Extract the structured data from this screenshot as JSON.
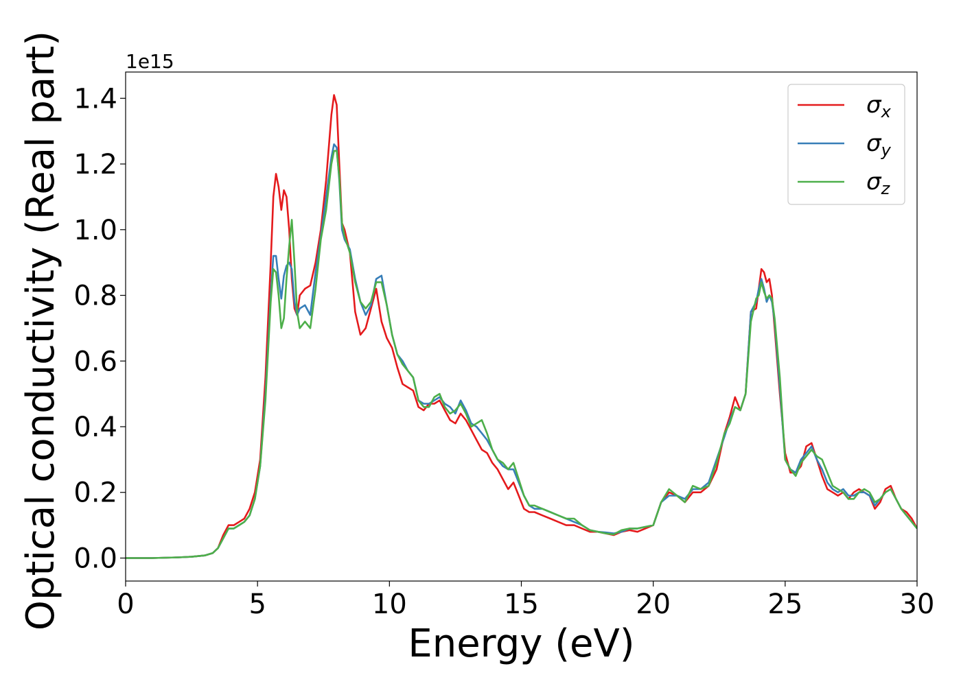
{
  "chart_data": {
    "type": "line",
    "xlabel": "Energy (eV)",
    "ylabel": "Optical conductivity (Real part)",
    "y_offset_label": "1e15",
    "y_scale_note": "y values in units of 1e15",
    "xlim": [
      0,
      30
    ],
    "ylim": [
      -0.07,
      1.48
    ],
    "x_ticks": [
      0,
      5,
      10,
      15,
      20,
      25,
      30
    ],
    "y_ticks": [
      0.0,
      0.2,
      0.4,
      0.6,
      0.8,
      1.0,
      1.2,
      1.4
    ],
    "grid": false,
    "legend_position": "top-right",
    "series": [
      {
        "name": "σx",
        "symbol": "σ",
        "subscript": "x",
        "color": "#e41a1c",
        "x": [
          0,
          1,
          2,
          2.5,
          3,
          3.3,
          3.5,
          3.7,
          3.9,
          4.1,
          4.3,
          4.5,
          4.7,
          4.9,
          5.1,
          5.3,
          5.5,
          5.6,
          5.7,
          5.8,
          5.9,
          6.0,
          6.1,
          6.2,
          6.3,
          6.4,
          6.5,
          6.6,
          6.8,
          7.0,
          7.2,
          7.4,
          7.6,
          7.8,
          7.9,
          8.0,
          8.1,
          8.2,
          8.3,
          8.5,
          8.7,
          8.9,
          9.1,
          9.3,
          9.5,
          9.7,
          9.9,
          10.1,
          10.3,
          10.5,
          10.7,
          10.9,
          11.1,
          11.3,
          11.5,
          11.7,
          11.9,
          12.1,
          12.3,
          12.5,
          12.7,
          12.9,
          13.1,
          13.3,
          13.5,
          13.7,
          13.9,
          14.1,
          14.3,
          14.5,
          14.7,
          14.9,
          15.1,
          15.3,
          15.5,
          15.8,
          16.1,
          16.4,
          16.7,
          17.0,
          17.3,
          17.6,
          17.9,
          18.2,
          18.5,
          18.8,
          19.1,
          19.4,
          19.7,
          20.0,
          20.3,
          20.6,
          20.9,
          21.2,
          21.5,
          21.8,
          22.1,
          22.4,
          22.7,
          22.9,
          23.1,
          23.3,
          23.5,
          23.7,
          23.9,
          24.0,
          24.1,
          24.2,
          24.3,
          24.4,
          24.5,
          24.6,
          24.8,
          25.0,
          25.2,
          25.4,
          25.6,
          25.8,
          26.0,
          26.2,
          26.4,
          26.6,
          26.8,
          27.0,
          27.2,
          27.4,
          27.6,
          27.8,
          28.0,
          28.2,
          28.4,
          28.6,
          28.8,
          29.0,
          29.2,
          29.4,
          29.6,
          29.8,
          30.0
        ],
        "y": [
          0.0,
          0.0,
          0.002,
          0.004,
          0.008,
          0.015,
          0.03,
          0.07,
          0.1,
          0.1,
          0.11,
          0.12,
          0.15,
          0.2,
          0.3,
          0.55,
          0.9,
          1.1,
          1.17,
          1.13,
          1.06,
          1.12,
          1.1,
          1.0,
          0.85,
          0.76,
          0.74,
          0.8,
          0.82,
          0.83,
          0.9,
          1.0,
          1.15,
          1.35,
          1.41,
          1.38,
          1.2,
          1.02,
          1.0,
          0.93,
          0.75,
          0.68,
          0.7,
          0.76,
          0.82,
          0.72,
          0.67,
          0.64,
          0.58,
          0.53,
          0.52,
          0.51,
          0.46,
          0.45,
          0.47,
          0.47,
          0.48,
          0.45,
          0.42,
          0.41,
          0.44,
          0.42,
          0.39,
          0.36,
          0.33,
          0.32,
          0.29,
          0.27,
          0.24,
          0.21,
          0.23,
          0.19,
          0.15,
          0.14,
          0.14,
          0.13,
          0.12,
          0.11,
          0.1,
          0.1,
          0.09,
          0.08,
          0.08,
          0.075,
          0.07,
          0.08,
          0.085,
          0.08,
          0.09,
          0.1,
          0.17,
          0.2,
          0.19,
          0.17,
          0.2,
          0.2,
          0.22,
          0.27,
          0.38,
          0.43,
          0.49,
          0.45,
          0.5,
          0.75,
          0.76,
          0.82,
          0.88,
          0.87,
          0.84,
          0.85,
          0.8,
          0.7,
          0.5,
          0.32,
          0.26,
          0.26,
          0.28,
          0.34,
          0.35,
          0.3,
          0.25,
          0.21,
          0.2,
          0.19,
          0.2,
          0.18,
          0.2,
          0.21,
          0.2,
          0.19,
          0.15,
          0.17,
          0.21,
          0.22,
          0.18,
          0.15,
          0.14,
          0.12,
          0.09
        ]
      },
      {
        "name": "σy",
        "symbol": "σ",
        "subscript": "y",
        "color": "#377eb8",
        "x": [
          0,
          1,
          2,
          2.5,
          3,
          3.3,
          3.5,
          3.7,
          3.9,
          4.1,
          4.3,
          4.5,
          4.7,
          4.9,
          5.1,
          5.3,
          5.5,
          5.6,
          5.7,
          5.8,
          5.9,
          6.0,
          6.1,
          6.2,
          6.3,
          6.4,
          6.5,
          6.6,
          6.8,
          7.0,
          7.2,
          7.4,
          7.6,
          7.8,
          7.9,
          8.0,
          8.1,
          8.2,
          8.3,
          8.5,
          8.7,
          8.9,
          9.1,
          9.3,
          9.5,
          9.7,
          9.9,
          10.1,
          10.3,
          10.5,
          10.7,
          10.9,
          11.1,
          11.3,
          11.5,
          11.7,
          11.9,
          12.1,
          12.3,
          12.5,
          12.7,
          12.9,
          13.1,
          13.3,
          13.5,
          13.7,
          13.9,
          14.1,
          14.3,
          14.5,
          14.7,
          14.9,
          15.1,
          15.3,
          15.5,
          15.8,
          16.1,
          16.4,
          16.7,
          17.0,
          17.3,
          17.6,
          17.9,
          18.2,
          18.5,
          18.8,
          19.1,
          19.4,
          19.7,
          20.0,
          20.3,
          20.6,
          20.9,
          21.2,
          21.5,
          21.8,
          22.1,
          22.4,
          22.7,
          22.9,
          23.1,
          23.3,
          23.5,
          23.7,
          23.9,
          24.0,
          24.1,
          24.2,
          24.3,
          24.4,
          24.5,
          24.6,
          24.8,
          25.0,
          25.2,
          25.4,
          25.6,
          25.8,
          26.0,
          26.2,
          26.4,
          26.6,
          26.8,
          27.0,
          27.2,
          27.4,
          27.6,
          27.8,
          28.0,
          28.2,
          28.4,
          28.6,
          28.8,
          29.0,
          29.2,
          29.4,
          29.6,
          29.8,
          30.0
        ],
        "y": [
          0.0,
          0.0,
          0.002,
          0.004,
          0.008,
          0.015,
          0.03,
          0.06,
          0.09,
          0.09,
          0.1,
          0.11,
          0.13,
          0.18,
          0.28,
          0.5,
          0.8,
          0.92,
          0.92,
          0.85,
          0.79,
          0.86,
          0.89,
          0.9,
          0.88,
          0.78,
          0.74,
          0.76,
          0.77,
          0.74,
          0.87,
          0.98,
          1.1,
          1.22,
          1.26,
          1.25,
          1.15,
          1.0,
          0.97,
          0.94,
          0.85,
          0.78,
          0.74,
          0.77,
          0.85,
          0.86,
          0.77,
          0.68,
          0.62,
          0.6,
          0.57,
          0.55,
          0.48,
          0.47,
          0.47,
          0.48,
          0.49,
          0.47,
          0.46,
          0.44,
          0.48,
          0.45,
          0.41,
          0.4,
          0.38,
          0.36,
          0.33,
          0.3,
          0.28,
          0.27,
          0.27,
          0.23,
          0.19,
          0.16,
          0.15,
          0.15,
          0.14,
          0.13,
          0.12,
          0.11,
          0.1,
          0.085,
          0.08,
          0.078,
          0.075,
          0.08,
          0.09,
          0.09,
          0.095,
          0.1,
          0.17,
          0.19,
          0.19,
          0.18,
          0.21,
          0.21,
          0.23,
          0.3,
          0.37,
          0.42,
          0.46,
          0.45,
          0.5,
          0.75,
          0.78,
          0.82,
          0.85,
          0.82,
          0.78,
          0.8,
          0.78,
          0.72,
          0.52,
          0.3,
          0.27,
          0.26,
          0.3,
          0.32,
          0.34,
          0.3,
          0.27,
          0.23,
          0.21,
          0.2,
          0.21,
          0.19,
          0.19,
          0.2,
          0.2,
          0.19,
          0.16,
          0.18,
          0.2,
          0.21,
          0.18,
          0.15,
          0.13,
          0.11,
          0.09
        ]
      },
      {
        "name": "σz",
        "symbol": "σ",
        "subscript": "z",
        "color": "#4daf4a",
        "x": [
          0,
          1,
          2,
          2.5,
          3,
          3.3,
          3.5,
          3.7,
          3.9,
          4.1,
          4.3,
          4.5,
          4.7,
          4.9,
          5.1,
          5.3,
          5.5,
          5.6,
          5.7,
          5.8,
          5.9,
          6.0,
          6.1,
          6.2,
          6.3,
          6.4,
          6.5,
          6.6,
          6.8,
          7.0,
          7.2,
          7.4,
          7.6,
          7.8,
          7.9,
          8.0,
          8.1,
          8.2,
          8.3,
          8.5,
          8.7,
          8.9,
          9.1,
          9.3,
          9.5,
          9.7,
          9.9,
          10.1,
          10.3,
          10.5,
          10.7,
          10.9,
          11.1,
          11.3,
          11.5,
          11.7,
          11.9,
          12.1,
          12.3,
          12.5,
          12.7,
          12.9,
          13.1,
          13.3,
          13.5,
          13.7,
          13.9,
          14.1,
          14.3,
          14.5,
          14.7,
          14.9,
          15.1,
          15.3,
          15.5,
          15.8,
          16.1,
          16.4,
          16.7,
          17.0,
          17.3,
          17.6,
          17.9,
          18.2,
          18.5,
          18.8,
          19.1,
          19.4,
          19.7,
          20.0,
          20.3,
          20.6,
          20.9,
          21.2,
          21.5,
          21.8,
          22.1,
          22.4,
          22.7,
          22.9,
          23.1,
          23.3,
          23.5,
          23.7,
          23.9,
          24.0,
          24.1,
          24.2,
          24.3,
          24.4,
          24.5,
          24.6,
          24.8,
          25.0,
          25.2,
          25.4,
          25.6,
          25.8,
          26.0,
          26.2,
          26.4,
          26.6,
          26.8,
          27.0,
          27.2,
          27.4,
          27.6,
          27.8,
          28.0,
          28.2,
          28.4,
          28.6,
          28.8,
          29.0,
          29.2,
          29.4,
          29.6,
          29.8,
          30.0
        ],
        "y": [
          0.0,
          0.0,
          0.002,
          0.004,
          0.008,
          0.015,
          0.03,
          0.06,
          0.09,
          0.09,
          0.1,
          0.11,
          0.13,
          0.18,
          0.28,
          0.48,
          0.78,
          0.88,
          0.87,
          0.8,
          0.7,
          0.73,
          0.85,
          0.95,
          1.03,
          0.9,
          0.75,
          0.7,
          0.72,
          0.7,
          0.82,
          0.97,
          1.06,
          1.2,
          1.24,
          1.24,
          1.16,
          1.02,
          0.98,
          0.93,
          0.84,
          0.78,
          0.76,
          0.78,
          0.84,
          0.84,
          0.77,
          0.68,
          0.62,
          0.59,
          0.57,
          0.55,
          0.48,
          0.46,
          0.46,
          0.49,
          0.5,
          0.46,
          0.44,
          0.45,
          0.47,
          0.44,
          0.4,
          0.41,
          0.42,
          0.38,
          0.33,
          0.3,
          0.29,
          0.27,
          0.29,
          0.24,
          0.19,
          0.16,
          0.16,
          0.15,
          0.14,
          0.13,
          0.12,
          0.12,
          0.1,
          0.085,
          0.08,
          0.075,
          0.072,
          0.085,
          0.09,
          0.09,
          0.095,
          0.1,
          0.17,
          0.21,
          0.19,
          0.17,
          0.22,
          0.21,
          0.22,
          0.29,
          0.38,
          0.41,
          0.46,
          0.45,
          0.5,
          0.72,
          0.79,
          0.8,
          0.84,
          0.81,
          0.79,
          0.8,
          0.79,
          0.73,
          0.55,
          0.3,
          0.27,
          0.25,
          0.29,
          0.31,
          0.33,
          0.31,
          0.3,
          0.26,
          0.22,
          0.21,
          0.2,
          0.18,
          0.18,
          0.2,
          0.21,
          0.2,
          0.17,
          0.18,
          0.2,
          0.21,
          0.18,
          0.15,
          0.13,
          0.11,
          0.09
        ]
      }
    ]
  }
}
